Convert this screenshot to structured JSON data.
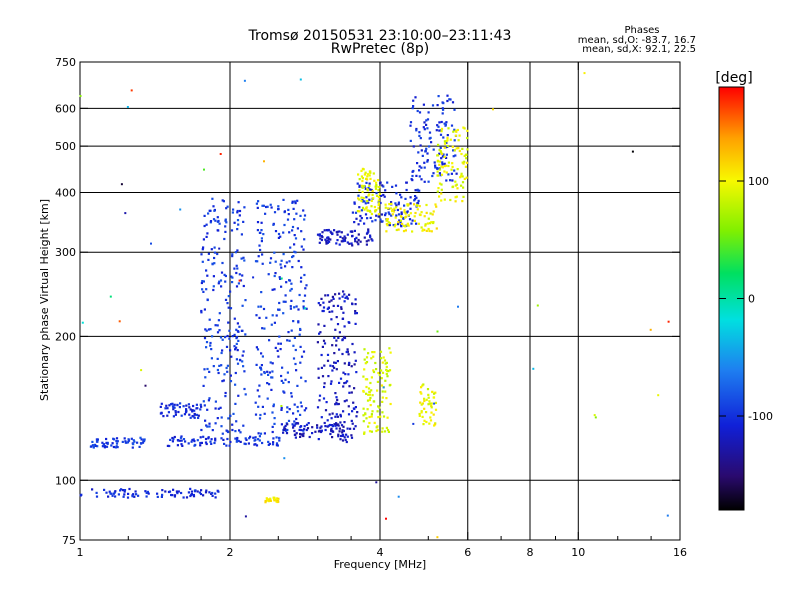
{
  "header": {
    "title": "Tromsø 20150531 23:10:00–23:11:43",
    "subtitle": "RwPretec (8p)",
    "stats_title": "Phases",
    "stats_o": "mean, sd,O: -83.7, 16.7",
    "stats_x": "mean, sd,X:  92.1, 22.5"
  },
  "chart_data": {
    "type": "scatter",
    "xlabel": "Frequency [MHz]",
    "ylabel": "Stationary phase Virtual Height [km]",
    "x_scale": "log2",
    "y_scale": "log",
    "xlim": [
      1,
      16
    ],
    "ylim": [
      75,
      750
    ],
    "x_ticks": [
      {
        "value": 1,
        "label": "1"
      },
      {
        "value": 2,
        "label": "2"
      },
      {
        "value": 4,
        "label": "4"
      },
      {
        "value": 6,
        "label": "6"
      },
      {
        "value": 8,
        "label": "8"
      },
      {
        "value": 10,
        "label": "10"
      },
      {
        "value": 16,
        "label": "16"
      }
    ],
    "x_grid": [
      2,
      4,
      6,
      8,
      10
    ],
    "y_ticks": [
      {
        "value": 75,
        "label": "75"
      },
      {
        "value": 100,
        "label": "100"
      },
      {
        "value": 200,
        "label": "200"
      },
      {
        "value": 300,
        "label": "300"
      },
      {
        "value": 400,
        "label": "400"
      },
      {
        "value": 500,
        "label": "500"
      },
      {
        "value": 600,
        "label": "600"
      },
      {
        "value": 750,
        "label": "750"
      }
    ],
    "y_grid": [
      100,
      200,
      300,
      400,
      500,
      600
    ],
    "grid": true,
    "colorbar": {
      "label": "[deg]",
      "range": [
        -180,
        180
      ],
      "ticks": [
        {
          "value": 100,
          "label": "100"
        },
        {
          "value": 0,
          "label": "0"
        },
        {
          "value": -100,
          "label": "-100"
        }
      ],
      "colors": [
        "#000000",
        "#2a0a6e",
        "#1020d8",
        "#1e7ef0",
        "#00e0e0",
        "#00e060",
        "#80f000",
        "#f8f800",
        "#ffa000",
        "#ff0000"
      ]
    },
    "clusters": [
      {
        "trace": "O",
        "x_range": [
          1.0,
          1.9
        ],
        "y_range": [
          92,
          96
        ],
        "phase": -105,
        "density": 1.0
      },
      {
        "trace": "O",
        "x_range": [
          1.05,
          1.35
        ],
        "y_range": [
          117,
          123
        ],
        "phase": -95,
        "density": 1.0
      },
      {
        "trace": "O",
        "x_range": [
          1.45,
          1.75
        ],
        "y_range": [
          135,
          145
        ],
        "phase": -105,
        "density": 0.9
      },
      {
        "trace": "O",
        "x_range": [
          1.5,
          2.6
        ],
        "y_range": [
          118,
          124
        ],
        "phase": -100,
        "density": 1.0
      },
      {
        "trace": "O",
        "x_range": [
          1.75,
          2.15
        ],
        "y_range": [
          125,
          390
        ],
        "phase": -95,
        "density": 1.0
      },
      {
        "trace": "O",
        "x_range": [
          2.25,
          2.85
        ],
        "y_range": [
          125,
          390
        ],
        "phase": -95,
        "density": 1.0
      },
      {
        "trace": "O",
        "x_range": [
          2.5,
          3.4
        ],
        "y_range": [
          122,
          132
        ],
        "phase": -120,
        "density": 0.9
      },
      {
        "trace": "O",
        "x_range": [
          3.0,
          3.6
        ],
        "y_range": [
          120,
          250
        ],
        "phase": -118,
        "density": 1.0
      },
      {
        "trace": "O",
        "x_range": [
          3.0,
          3.9
        ],
        "y_range": [
          310,
          335
        ],
        "phase": -120,
        "density": 1.0
      },
      {
        "trace": "O",
        "x_range": [
          3.5,
          4.8
        ],
        "y_range": [
          340,
          420
        ],
        "phase": -105,
        "density": 0.9
      },
      {
        "trace": "O",
        "x_range": [
          4.6,
          5.7
        ],
        "y_range": [
          420,
          640
        ],
        "phase": -100,
        "density": 0.8
      },
      {
        "trace": "X",
        "x_range": [
          3.7,
          4.2
        ],
        "y_range": [
          125,
          190
        ],
        "phase": 90,
        "density": 0.9
      },
      {
        "trace": "X",
        "x_range": [
          3.6,
          4.0
        ],
        "y_range": [
          360,
          450
        ],
        "phase": 95,
        "density": 0.9
      },
      {
        "trace": "X",
        "x_range": [
          4.1,
          5.2
        ],
        "y_range": [
          330,
          380
        ],
        "phase": 100,
        "density": 0.9
      },
      {
        "trace": "X",
        "x_range": [
          4.8,
          5.2
        ],
        "y_range": [
          130,
          160
        ],
        "phase": 95,
        "density": 0.6
      },
      {
        "trace": "X",
        "x_range": [
          5.2,
          6.0
        ],
        "y_range": [
          380,
          560
        ],
        "phase": 95,
        "density": 0.8
      },
      {
        "trace": "X",
        "x_range": [
          2.35,
          2.5
        ],
        "y_range": [
          90,
          92
        ],
        "phase": 110,
        "density": 1.0
      }
    ]
  }
}
